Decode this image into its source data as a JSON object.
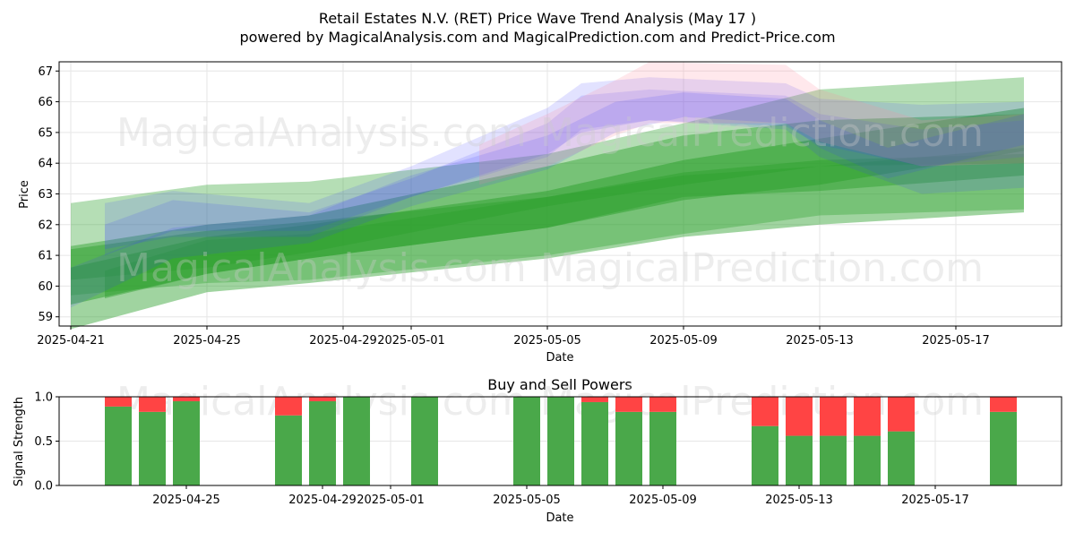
{
  "title_line1": "Retail Estates N.V. (RET) Price Wave Trend Analysis (May 17 )",
  "title_line2": "powered by MagicalAnalysis.com and MagicalPrediction.com and Predict-Price.com",
  "watermarks": [
    "MagicalAnalysis.com",
    "MagicalPrediction.com"
  ],
  "colors": {
    "green": "#2ca02c",
    "blue": "#3f3fff",
    "pink": "#ff8ca0",
    "buy": "#4aa84a",
    "sell": "#ff4444",
    "grid": "#e6e6e6"
  },
  "chart_data": [
    {
      "type": "area",
      "title": "",
      "xlabel": "Date",
      "ylabel": "Price",
      "xlim": [
        "2025-04-20.5",
        "2025-05-20.9"
      ],
      "ylim": [
        58.7,
        67.3
      ],
      "x_ticks": [
        "2025-04-21",
        "2025-04-25",
        "2025-04-29",
        "2025-05-01",
        "2025-05-05",
        "2025-05-09",
        "2025-05-13",
        "2025-05-17"
      ],
      "y_ticks": [
        59,
        60,
        61,
        62,
        63,
        64,
        65,
        66,
        67
      ],
      "bands": [
        {
          "color": "green",
          "opacity": 0.35,
          "upper": [
            [
              0,
              62.7
            ],
            [
              4,
              63.3
            ],
            [
              7,
              63.4
            ],
            [
              14,
              64.3
            ],
            [
              18,
              65.3
            ],
            [
              22,
              66.4
            ],
            [
              28,
              66.8
            ]
          ],
          "lower": [
            [
              0,
              59.7
            ],
            [
              4,
              60.1
            ],
            [
              7,
              60.2
            ],
            [
              14,
              61.0
            ],
            [
              18,
              61.7
            ],
            [
              22,
              62.3
            ],
            [
              28,
              62.5
            ]
          ]
        },
        {
          "color": "green",
          "opacity": 0.45,
          "upper": [
            [
              0,
              61.3
            ],
            [
              4,
              62.0
            ],
            [
              7,
              62.3
            ],
            [
              14,
              63.9
            ],
            [
              18,
              64.9
            ],
            [
              22,
              65.4
            ],
            [
              28,
              65.6
            ]
          ],
          "lower": [
            [
              0,
              60.2
            ],
            [
              4,
              60.6
            ],
            [
              7,
              61.1
            ],
            [
              14,
              62.6
            ],
            [
              18,
              63.3
            ],
            [
              22,
              63.9
            ],
            [
              28,
              64.0
            ]
          ]
        },
        {
          "color": "green",
          "opacity": 0.45,
          "upper": [
            [
              0,
              61.2
            ],
            [
              4,
              61.8
            ],
            [
              7,
              62.1
            ],
            [
              14,
              62.9
            ],
            [
              18,
              63.7
            ],
            [
              22,
              64.1
            ],
            [
              28,
              64.3
            ]
          ],
          "lower": [
            [
              0,
              58.6
            ],
            [
              4,
              59.8
            ],
            [
              7,
              60.1
            ],
            [
              14,
              60.9
            ],
            [
              18,
              61.6
            ],
            [
              22,
              62.0
            ],
            [
              28,
              62.4
            ]
          ]
        },
        {
          "color": "green",
          "opacity": 0.5,
          "upper": [
            [
              0,
              60.6
            ],
            [
              4,
              61.6
            ],
            [
              7,
              62.0
            ],
            [
              14,
              63.1
            ],
            [
              18,
              64.1
            ],
            [
              22,
              64.8
            ],
            [
              28,
              65.8
            ]
          ],
          "lower": [
            [
              0,
              59.4
            ],
            [
              4,
              60.4
            ],
            [
              7,
              60.9
            ],
            [
              14,
              61.9
            ],
            [
              18,
              62.8
            ],
            [
              22,
              63.3
            ],
            [
              28,
              64.4
            ]
          ]
        },
        {
          "color": "green",
          "opacity": 0.45,
          "upper": [
            [
              1,
              60.5
            ],
            [
              4,
              61.5
            ],
            [
              7,
              61.7
            ],
            [
              14,
              62.9
            ],
            [
              18,
              63.6
            ],
            [
              22,
              63.9
            ],
            [
              28,
              64.5
            ]
          ],
          "lower": [
            [
              1,
              59.6
            ],
            [
              4,
              60.4
            ],
            [
              7,
              60.9
            ],
            [
              14,
              61.9
            ],
            [
              18,
              62.9
            ],
            [
              22,
              63.1
            ],
            [
              28,
              63.6
            ]
          ]
        },
        {
          "color": "blue",
          "opacity": 0.15,
          "upper": [
            [
              1,
              62.7
            ],
            [
              3,
              63.1
            ],
            [
              7,
              62.7
            ],
            [
              10,
              63.9
            ],
            [
              14,
              65.8
            ],
            [
              15,
              66.6
            ],
            [
              17,
              66.8
            ],
            [
              21,
              66.6
            ],
            [
              22,
              66.1
            ],
            [
              25,
              65.9
            ],
            [
              28,
              66.0
            ]
          ],
          "lower": [
            [
              1,
              61.2
            ],
            [
              3,
              61.6
            ],
            [
              7,
              61.6
            ],
            [
              10,
              62.9
            ],
            [
              14,
              64.2
            ],
            [
              15,
              65.1
            ],
            [
              17,
              65.4
            ],
            [
              21,
              65.1
            ],
            [
              22,
              64.2
            ],
            [
              25,
              63.0
            ],
            [
              28,
              63.2
            ]
          ]
        },
        {
          "color": "blue",
          "opacity": 0.15,
          "upper": [
            [
              1,
              62.0
            ],
            [
              3,
              62.8
            ],
            [
              7,
              62.4
            ],
            [
              10,
              63.5
            ],
            [
              14,
              65.3
            ],
            [
              15,
              66.2
            ],
            [
              17,
              66.4
            ],
            [
              21,
              66.2
            ],
            [
              22,
              65.6
            ],
            [
              25,
              65.1
            ],
            [
              28,
              65.4
            ]
          ],
          "lower": [
            [
              1,
              61.0
            ],
            [
              3,
              61.8
            ],
            [
              7,
              61.8
            ],
            [
              10,
              62.9
            ],
            [
              14,
              64.3
            ],
            [
              15,
              65.0
            ],
            [
              17,
              65.4
            ],
            [
              21,
              65.2
            ],
            [
              22,
              64.6
            ],
            [
              25,
              63.9
            ],
            [
              28,
              64.2
            ]
          ]
        },
        {
          "color": "pink",
          "opacity": 0.2,
          "upper": [
            [
              12,
              64.6
            ],
            [
              14,
              65.6
            ],
            [
              16,
              66.7
            ],
            [
              17,
              67.3
            ],
            [
              21,
              67.2
            ],
            [
              22,
              66.4
            ],
            [
              25,
              65.4
            ],
            [
              28,
              65.6
            ]
          ],
          "lower": [
            [
              12,
              63.3
            ],
            [
              14,
              63.9
            ],
            [
              16,
              64.9
            ],
            [
              17,
              65.3
            ],
            [
              21,
              65.3
            ],
            [
              22,
              64.7
            ],
            [
              25,
              63.9
            ],
            [
              28,
              64.0
            ]
          ]
        },
        {
          "color": "blue",
          "opacity": 0.15,
          "upper": [
            [
              0,
              60.6
            ],
            [
              3,
              61.9
            ],
            [
              7,
              62.3
            ],
            [
              10,
              63.6
            ],
            [
              14,
              64.9
            ],
            [
              16,
              66.0
            ],
            [
              18,
              66.3
            ],
            [
              21,
              66.1
            ],
            [
              22,
              65.4
            ],
            [
              24,
              64.5
            ],
            [
              28,
              65.6
            ]
          ],
          "lower": [
            [
              0,
              59.3
            ],
            [
              3,
              60.9
            ],
            [
              7,
              61.4
            ],
            [
              10,
              62.6
            ],
            [
              14,
              63.8
            ],
            [
              16,
              65.0
            ],
            [
              18,
              65.5
            ],
            [
              21,
              65.3
            ],
            [
              22,
              64.5
            ],
            [
              24,
              63.5
            ],
            [
              28,
              64.6
            ]
          ]
        }
      ]
    },
    {
      "type": "bar",
      "title": "Buy and Sell Powers",
      "xlabel": "Date",
      "ylabel": "Signal Strength",
      "ylim": [
        0.0,
        1.0
      ],
      "y_ticks": [
        "0.0",
        "0.5",
        "1.0"
      ],
      "x_ticks": [
        "2025-04-25",
        "2025-04-29",
        "2025-05-01",
        "2025-05-05",
        "2025-05-09",
        "2025-05-13",
        "2025-05-17"
      ],
      "categories": [
        "2025-04-23",
        "2025-04-24",
        "2025-04-25",
        "2025-04-28",
        "2025-04-29",
        "2025-04-30",
        "2025-05-02",
        "2025-05-05",
        "2025-05-06",
        "2025-05-07",
        "2025-05-08",
        "2025-05-09",
        "2025-05-12",
        "2025-05-13",
        "2025-05-14",
        "2025-05-15",
        "2025-05-16",
        "2025-05-19"
      ],
      "series": [
        {
          "name": "Buy",
          "color": "buy",
          "values": [
            0.89,
            0.83,
            0.95,
            0.79,
            0.95,
            1.0,
            1.0,
            1.0,
            1.0,
            0.94,
            0.83,
            0.83,
            0.67,
            0.56,
            0.56,
            0.56,
            0.61,
            0.83
          ]
        },
        {
          "name": "Sell",
          "color": "sell",
          "values": [
            0.11,
            0.17,
            0.05,
            0.21,
            0.05,
            0.0,
            0.0,
            0.0,
            0.0,
            0.06,
            0.17,
            0.17,
            0.33,
            0.44,
            0.44,
            0.44,
            0.39,
            0.17
          ]
        }
      ]
    }
  ]
}
